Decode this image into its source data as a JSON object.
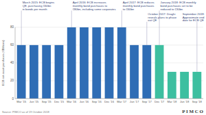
{
  "chart_data": {
    "type": "bar",
    "ylabel": "ECB net asset purchases (€Billions)",
    "categories": [
      "Mar '15",
      "Jun '15",
      "Sep '15",
      "Dec '15",
      "Mar '16",
      "Jun '16",
      "Sep '16",
      "Dec '16",
      "Mar '17",
      "Jun '17",
      "Sep '17",
      "Dec '17",
      "Mar '18",
      "Jun '18",
      "Sep '18"
    ],
    "values": [
      60,
      60,
      60,
      60,
      80,
      80,
      80,
      80,
      80,
      60,
      60,
      60,
      30,
      30,
      30
    ],
    "colors": [
      "#2f6db5",
      "#2f6db5",
      "#2f6db5",
      "#2f6db5",
      "#2f6db5",
      "#2f6db5",
      "#2f6db5",
      "#2f6db5",
      "#2f6db5",
      "#2f6db5",
      "#2f6db5",
      "#3dbfa0",
      "#3dbfa0",
      "#3dbfa0",
      "#3dbfa0"
    ],
    "ylim": [
      0,
      80
    ],
    "yticks": [
      0,
      20,
      40,
      60,
      80
    ],
    "grid": true,
    "annotations": [
      {
        "text": "March 2015: ECB begins\nQE, purchasing €60bn\nin bonds per month",
        "index": 0
      },
      {
        "text": "April 2016: ECB increases\nmonthly bond purchases to\n€80bn, including some corporates",
        "index": 4
      },
      {
        "text": "April 2017: ECB reduces\nmonthly bond purchases\nto €60bn",
        "index": 8
      },
      {
        "text": "October 2017: Draghi\nreveals plans to phase\nout QE",
        "index": 10
      },
      {
        "text": "January 2018: ECB monthly\nbond purchases set to be\nreduced to €30bn",
        "index": 11
      },
      {
        "text": "September 2018:\nApproximate end\ndate for ECB QE",
        "index": 14
      }
    ],
    "source": "Source: PIMCO as of 19 October 2018",
    "logo": "P I M C O"
  }
}
